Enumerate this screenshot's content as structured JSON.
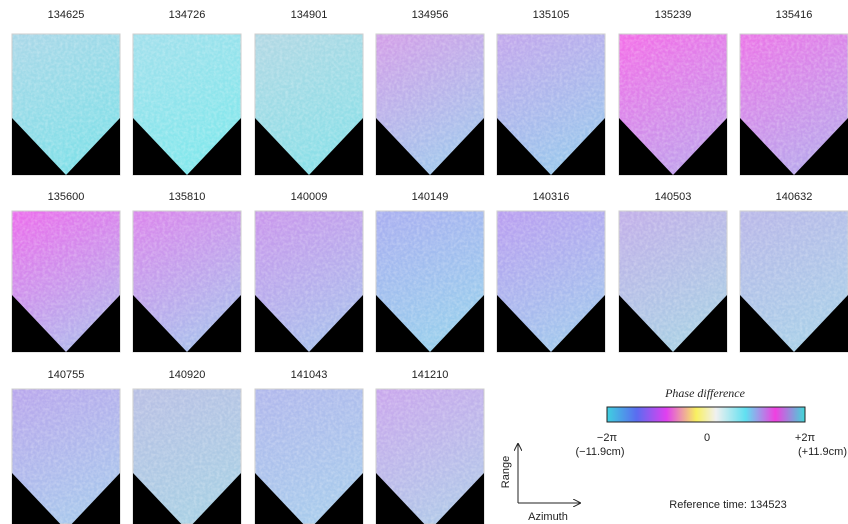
{
  "panels": [
    {
      "label": "134625"
    },
    {
      "label": "134726"
    },
    {
      "label": "134901"
    },
    {
      "label": "134956"
    },
    {
      "label": "135105"
    },
    {
      "label": "135239"
    },
    {
      "label": "135416"
    },
    {
      "label": "135600"
    },
    {
      "label": "135810"
    },
    {
      "label": "140009"
    },
    {
      "label": "140149"
    },
    {
      "label": "140316"
    },
    {
      "label": "140503"
    },
    {
      "label": "140632"
    },
    {
      "label": "140755"
    },
    {
      "label": "140920"
    },
    {
      "label": "141043"
    },
    {
      "label": "141210"
    }
  ],
  "colorbar": {
    "title": "Phase difference",
    "ticks": [
      {
        "symbol": "−2π",
        "unit": "(−11.9cm)"
      },
      {
        "symbol": "0"
      },
      {
        "symbol": "+2π",
        "unit": "(+11.9cm)"
      }
    ]
  },
  "axes": {
    "range": "Range",
    "azimuth": "Azimuth"
  },
  "reference": "Reference time: 134523"
}
